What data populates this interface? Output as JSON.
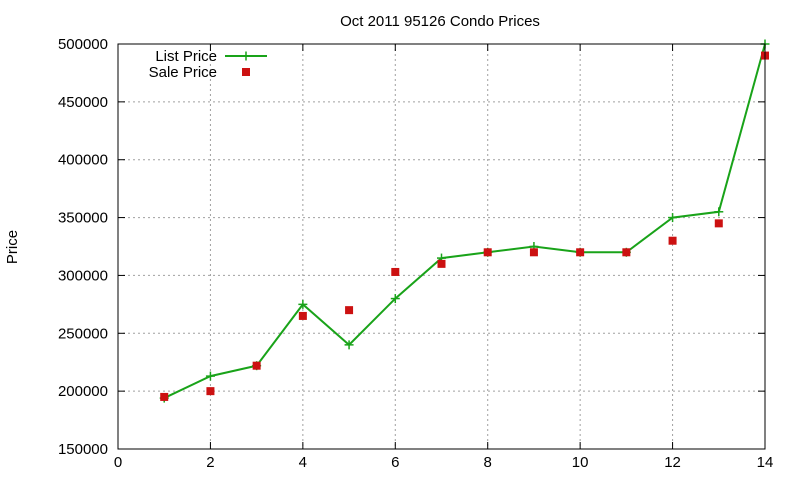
{
  "chart_data": {
    "type": "line",
    "title": "Oct 2011 95126 Condo Prices",
    "xlabel": "",
    "ylabel": "Price",
    "xlim": [
      0,
      14
    ],
    "ylim": [
      150000,
      500000
    ],
    "x_ticks": [
      0,
      2,
      4,
      6,
      8,
      10,
      12,
      14
    ],
    "y_ticks": [
      150000,
      200000,
      250000,
      300000,
      350000,
      400000,
      450000,
      500000
    ],
    "x_tick_labels": [
      "0",
      "2",
      "4",
      "6",
      "8",
      "10",
      "12",
      "14"
    ],
    "y_tick_labels": [
      "150000",
      "200000",
      "250000",
      "300000",
      "350000",
      "400000",
      "450000",
      "500000"
    ],
    "grid": true,
    "legend_position": "top-left",
    "series": [
      {
        "name": "List Price",
        "style": "linespoints",
        "marker": "plus",
        "color": "#19a319",
        "points": [
          [
            1,
            194000
          ],
          [
            2,
            213000
          ],
          [
            3,
            222000
          ],
          [
            4,
            275000
          ],
          [
            5,
            240000
          ],
          [
            6,
            280000
          ],
          [
            7,
            315000
          ],
          [
            8,
            320000
          ],
          [
            9,
            325000
          ],
          [
            10,
            320000
          ],
          [
            11,
            320000
          ],
          [
            12,
            350000
          ],
          [
            13,
            355000
          ],
          [
            14,
            500000
          ]
        ]
      },
      {
        "name": "Sale Price",
        "style": "points",
        "marker": "square",
        "color": "#cc1111",
        "points": [
          [
            1,
            195000
          ],
          [
            2,
            200000
          ],
          [
            3,
            222000
          ],
          [
            4,
            265000
          ],
          [
            5,
            270000
          ],
          [
            6,
            303000
          ],
          [
            7,
            310000
          ],
          [
            8,
            320000
          ],
          [
            9,
            320000
          ],
          [
            10,
            320000
          ],
          [
            11,
            320000
          ],
          [
            12,
            330000
          ],
          [
            13,
            345000
          ],
          [
            14,
            490000
          ]
        ]
      }
    ]
  }
}
